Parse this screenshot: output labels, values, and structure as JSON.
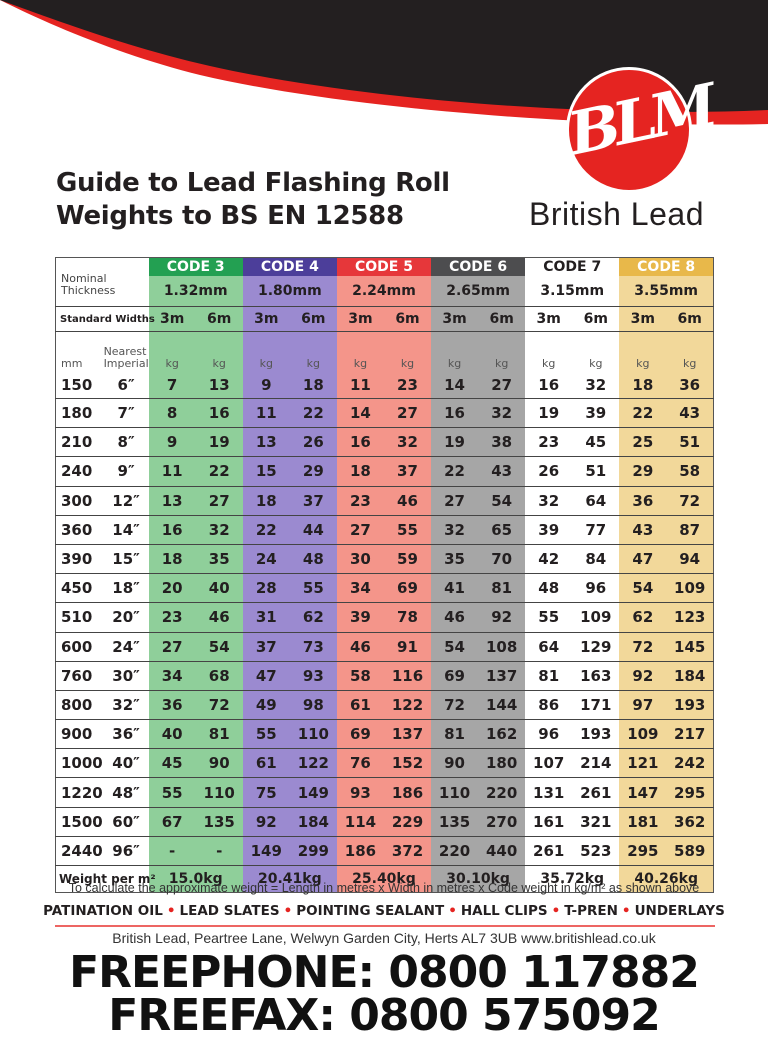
{
  "brand": {
    "logo_text": "BLM",
    "name": "British Lead",
    "colors": {
      "red": "#e52421",
      "black": "#231f20"
    }
  },
  "title": {
    "line1": "Guide to Lead Flashing Roll",
    "line2": "Weights to BS EN 12588"
  },
  "table": {
    "nominal_label": "Nominal Thickness",
    "standard_widths_label": "Standard Widths",
    "mm_label": "mm",
    "imperial_label": "Nearest Imperial",
    "unit": "kg",
    "codes": [
      {
        "name": "CODE 3",
        "thickness": "1.32mm",
        "weight_per_m2": "15.0kg",
        "color": "#8fcf9a",
        "header_color": "#23a052"
      },
      {
        "name": "CODE 4",
        "thickness": "1.80mm",
        "weight_per_m2": "20.41kg",
        "color": "#9b8ad0",
        "header_color": "#4c3e9a"
      },
      {
        "name": "CODE 5",
        "thickness": "2.24mm",
        "weight_per_m2": "25.40kg",
        "color": "#f4958a",
        "header_color": "#e6373a"
      },
      {
        "name": "CODE 6",
        "thickness": "2.65mm",
        "weight_per_m2": "30.10kg",
        "color": "#a6a6a6",
        "header_color": "#4d4d4f"
      },
      {
        "name": "CODE 7",
        "thickness": "3.15mm",
        "weight_per_m2": "35.72kg",
        "color": "#ffffff",
        "header_color": "#ffffff"
      },
      {
        "name": "CODE 8",
        "thickness": "3.55mm",
        "weight_per_m2": "40.26kg",
        "color": "#f2d89a",
        "header_color": "#e8b84a"
      }
    ],
    "widths": [
      "3m",
      "6m"
    ],
    "weight_per_m2_label": "Weight per m²",
    "rows": [
      {
        "mm": "150",
        "imperial": "6″",
        "values": [
          "7",
          "13",
          "9",
          "18",
          "11",
          "23",
          "14",
          "27",
          "16",
          "32",
          "18",
          "36"
        ]
      },
      {
        "mm": "180",
        "imperial": "7″",
        "values": [
          "8",
          "16",
          "11",
          "22",
          "14",
          "27",
          "16",
          "32",
          "19",
          "39",
          "22",
          "43"
        ]
      },
      {
        "mm": "210",
        "imperial": "8″",
        "values": [
          "9",
          "19",
          "13",
          "26",
          "16",
          "32",
          "19",
          "38",
          "23",
          "45",
          "25",
          "51"
        ]
      },
      {
        "mm": "240",
        "imperial": "9″",
        "values": [
          "11",
          "22",
          "15",
          "29",
          "18",
          "37",
          "22",
          "43",
          "26",
          "51",
          "29",
          "58"
        ]
      },
      {
        "mm": "300",
        "imperial": "12″",
        "values": [
          "13",
          "27",
          "18",
          "37",
          "23",
          "46",
          "27",
          "54",
          "32",
          "64",
          "36",
          "72"
        ]
      },
      {
        "mm": "360",
        "imperial": "14″",
        "values": [
          "16",
          "32",
          "22",
          "44",
          "27",
          "55",
          "32",
          "65",
          "39",
          "77",
          "43",
          "87"
        ]
      },
      {
        "mm": "390",
        "imperial": "15″",
        "values": [
          "18",
          "35",
          "24",
          "48",
          "30",
          "59",
          "35",
          "70",
          "42",
          "84",
          "47",
          "94"
        ]
      },
      {
        "mm": "450",
        "imperial": "18″",
        "values": [
          "20",
          "40",
          "28",
          "55",
          "34",
          "69",
          "41",
          "81",
          "48",
          "96",
          "54",
          "109"
        ]
      },
      {
        "mm": "510",
        "imperial": "20″",
        "values": [
          "23",
          "46",
          "31",
          "62",
          "39",
          "78",
          "46",
          "92",
          "55",
          "109",
          "62",
          "123"
        ]
      },
      {
        "mm": "600",
        "imperial": "24″",
        "values": [
          "27",
          "54",
          "37",
          "73",
          "46",
          "91",
          "54",
          "108",
          "64",
          "129",
          "72",
          "145"
        ]
      },
      {
        "mm": "760",
        "imperial": "30″",
        "values": [
          "34",
          "68",
          "47",
          "93",
          "58",
          "116",
          "69",
          "137",
          "81",
          "163",
          "92",
          "184"
        ]
      },
      {
        "mm": "800",
        "imperial": "32″",
        "values": [
          "36",
          "72",
          "49",
          "98",
          "61",
          "122",
          "72",
          "144",
          "86",
          "171",
          "97",
          "193"
        ]
      },
      {
        "mm": "900",
        "imperial": "36″",
        "values": [
          "40",
          "81",
          "55",
          "110",
          "69",
          "137",
          "81",
          "162",
          "96",
          "193",
          "109",
          "217"
        ]
      },
      {
        "mm": "1000",
        "imperial": "40″",
        "values": [
          "45",
          "90",
          "61",
          "122",
          "76",
          "152",
          "90",
          "180",
          "107",
          "214",
          "121",
          "242"
        ]
      },
      {
        "mm": "1220",
        "imperial": "48″",
        "values": [
          "55",
          "110",
          "75",
          "149",
          "93",
          "186",
          "110",
          "220",
          "131",
          "261",
          "147",
          "295"
        ]
      },
      {
        "mm": "1500",
        "imperial": "60″",
        "values": [
          "67",
          "135",
          "92",
          "184",
          "114",
          "229",
          "135",
          "270",
          "161",
          "321",
          "181",
          "362"
        ]
      },
      {
        "mm": "2440",
        "imperial": "96″",
        "values": [
          "-",
          "-",
          "149",
          "299",
          "186",
          "372",
          "220",
          "440",
          "261",
          "523",
          "295",
          "589"
        ]
      }
    ]
  },
  "footer": {
    "note": "To calculate the approximate weight = Length in metres x Width in metres x Code weight in kg/m² as shown above",
    "products": [
      "PATINATION OIL",
      "LEAD SLATES",
      "POINTING SEALANT",
      "HALL CLIPS",
      "T-PREN",
      "UNDERLAYS"
    ],
    "separator": "•",
    "address": "British Lead, Peartree Lane, Welwyn Garden City, Herts  AL7 3UB www.britishlead.co.uk",
    "freephone": "FREEPHONE: 0800 117882",
    "freefax": "FREEFAX: 0800 575092"
  }
}
